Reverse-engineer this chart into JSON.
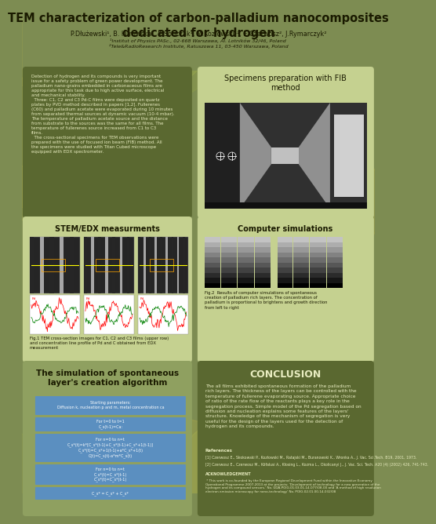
{
  "title": "TEM characterization of carbon-palladium nanocomposites\ndedicated for hydrogen",
  "authors": "P.Dłużewski¹, B. Kurowska¹, K.Sobczak¹, M.Kozłowski¹², E.Czerwosz², J.Rymarczyk²",
  "affil1": "¹Institut of Physics PASc., 02-668 Warszawa, Al. Lotników 32/46, Poland",
  "affil2": "²Tele&RadioResearch Institute, Ratuszowa 11, 03-450 Warszawa, Poland",
  "bg_color": "#7d8c52",
  "panel_bg_light": "#c5d190",
  "panel_bg_dark": "#5a6830",
  "panel_bg_mid": "#8fa060",
  "title_color": "#1a1a00",
  "light_text": "#e8ecc0",
  "box_blue": "#5b8fc0",
  "intro_text": "Detection of hydrogen and its compounds is very important\nissue for a safety problem of green power development. The\npalladium nano-grains embedded in carbonaceous films are\nappropriate for this task due to high active surface, electrical\nand mechanical stability.\n  Three: C1, C2 and C3 Pd-C films were deposited on quartz\nplates by PVD method described in papers [1,2]. Fullerenes\n(C60) and palladium acetate were evaporated during 10 minutes\nfrom separated thermal sources at dynamic vacuum (10-4 mbar).\nThe temperature of palladium acetate source and the distance\nfrom substrate to the sources was the same for all films. The\ntemperature of fullerenes source increased from C1 to C3\nfilms.\n  The cross-sectional specimens for TEM observations were\nprepared with the use of focused ion beam (FIB) method. All\nthe specimens were studied with Titan Cubed microscope\nequipped with EDX spectrometer.",
  "stem_title": "STEM/EDX measurments",
  "stem_caption": "Fig.1 TEM cross-section images for C1, C2 and C3 films (upper row)\nand concentration line profile of Pd and C obtained from EDX\nmeasurement",
  "fib_title": "Specimens preparation with FIB\nmethod",
  "comp_title": "Computer simulations",
  "comp_caption": "Fig.2  Results of computer simulations of spontaneous\ncreation of palladium rich layers. The concentration of\npalladium is proportional to brightens and growth direction\nfrom left to right",
  "sim_title": "The simulation of spontaneous\nlayer's creation algorithm",
  "sim_box1": "Starting parameters:\nDiffusion k, nucleation p and m, metal concentration ca",
  "sim_box2": "For t=0 to t=1\nC_s(t-1)=Ca:",
  "sim_box3": "For n=0 to n=t\nC_s*(t)=k*[C_s*(t-1)+C_s*(t-1)+C_s*+1(t-1)]\nC_s*(t)=C_s*+1(t-1)+a*C_s*+1(t)\nC(t)=C_s(t)-a*m*C_s(t)",
  "sim_box4": "For n=0 to n=t\nC_s*(t)=C_s*(t-1)\nC_s*(t)=C_s*(t-1)",
  "sim_box5": "C_s* = C_s* + C_s*",
  "conclusion_title": "CONCLUSION",
  "conclusion_text": "The all films exhibited spontaneous formation of the palladium\nrich layers. The thickness of the layers can be controlled with the\ntemperature of fullerene evaporating source. Appropriate choice\nof ratio of the rate flow of the reactants plays a key role in the\nsegregation process. Simple model of the Pd segregation based on\ndiffusion and nucleation explains some features of the layers'\nstructure. Knowledge of the mechanism of segregation is very\nuseful for the design of the layers used for the detection of\nhydrogen and its compounds.",
  "references_title": "References",
  "ref1": "[1] Czerwosz E., Skokowski P., Kozłowski M., Ratajski M., Buranowski K., Wronka A., J. Vac. Sci.Tech. B19, 2001, 1973.",
  "ref2": "[2] Czerwosz E., Czerwosz M., Köfalusi A., Kłosing L., Kozma L., Okolicanyi J., J. Vac. Sci. Tech. A20 (4) (2002) 426, 741-743.",
  "ack_title": "ACKNOWLEDGEMENT",
  "ack_text": " * This work is co-founded by the European Regional Development Fund within the Innovative Economy\nOperational Programme 2007-2013 at the projects: 'Development of technology for a new generation of the\nhydrogen and its compound sensors.' No. UDA-POIG.01.03.01-14-077/08-00 and 'A method of high resolution\nelectron emission microscopy for nano-technology' No. POIG.02.01.00-14-032/08"
}
